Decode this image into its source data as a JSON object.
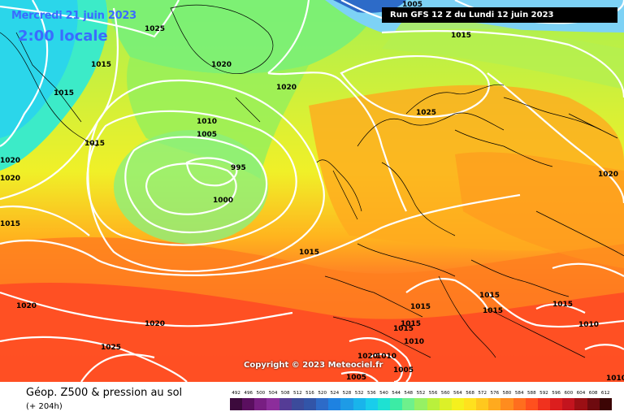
{
  "header": {
    "date": "Mercredi 21 juin 2023",
    "time": "2:00 locale",
    "run": "Run GFS 12 Z du Lundi 12 juin 2023"
  },
  "copyright": "Copyright © 2023 Meteociel.fr",
  "footer": {
    "title": "Géop. Z500 & pression au sol",
    "subtitle": "(+ 204h)"
  },
  "isobar_labels": [
    "1005",
    "1025",
    "1015",
    "1015",
    "1020",
    "1015",
    "1020",
    "1020",
    "1015",
    "1010",
    "1005",
    "1015",
    "995",
    "1000",
    "1025",
    "1015",
    "1020",
    "1020",
    "1015",
    "1020",
    "1025",
    "1015",
    "1015",
    "1015",
    "1010",
    "1015",
    "1015",
    "1020",
    "1010",
    "1010",
    "1005",
    "1005",
    "1020",
    "1010"
  ],
  "scale": {
    "labels": [
      "492",
      "496",
      "500",
      "504",
      "508",
      "512",
      "516",
      "520",
      "524",
      "528",
      "532",
      "536",
      "540",
      "544",
      "548",
      "552",
      "556",
      "560",
      "564",
      "568",
      "572",
      "576",
      "580",
      "584",
      "588",
      "592",
      "596",
      "600",
      "604",
      "608",
      "612"
    ],
    "colors": [
      "#3c0a3c",
      "#5a0f5f",
      "#781e82",
      "#8c2d9b",
      "#553c96",
      "#3c4b9b",
      "#3255a8",
      "#2d6bc8",
      "#1e82e1",
      "#1e9be6",
      "#19b4eb",
      "#19cdeb",
      "#1ee1d2",
      "#3ceba5",
      "#6ef08c",
      "#96f064",
      "#b9f03c",
      "#dcf028",
      "#f5f01e",
      "#ffe11e",
      "#ffc81e",
      "#ffaa1e",
      "#ff8c1e",
      "#ff6e1e",
      "#ff501e",
      "#f0321e",
      "#dc1e1e",
      "#c3141e",
      "#9b0f14",
      "#6e0a0f",
      "#3c0505"
    ]
  }
}
